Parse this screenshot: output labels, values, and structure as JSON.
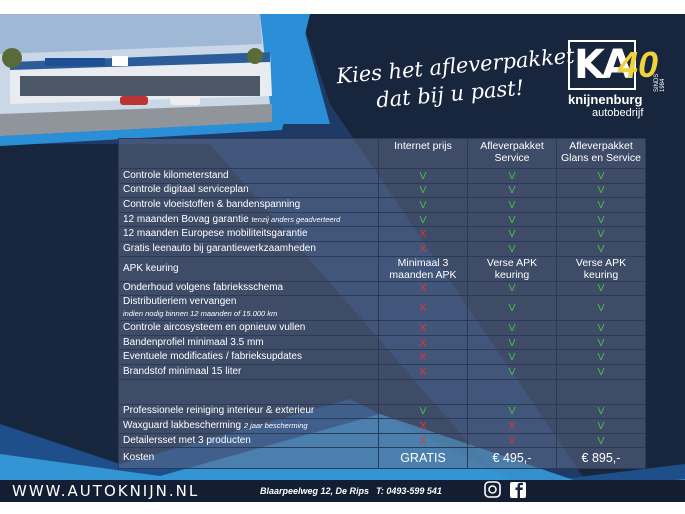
{
  "slogan": [
    "Kies het afleverpakket",
    "dat bij u past!"
  ],
  "logo": {
    "letters": "KA",
    "anniversary": "40",
    "name": "knijnenburg",
    "subtitle": "autobedrijf",
    "since": "SINDS 1984"
  },
  "table": {
    "symbol_colors": {
      "V": "#46c046",
      "X": "#e3342c"
    },
    "header": [
      "Internet prijs",
      "Afleverpakket Service",
      "Afleverpakket Glans en Service"
    ],
    "sections": [
      {
        "rows": [
          {
            "label": "Controle kilometerstand",
            "cells": [
              "V",
              "V",
              "V"
            ]
          },
          {
            "label": "Controle digitaal serviceplan",
            "cells": [
              "V",
              "V",
              "V"
            ]
          },
          {
            "label": "Controle vloeistoffen & bandenspanning",
            "cells": [
              "V",
              "V",
              "V"
            ]
          },
          {
            "label": "12 maanden Bovag garantie",
            "note": "tenzij anders geadverteerd",
            "cells": [
              "V",
              "V",
              "V"
            ]
          },
          {
            "label": "12 maanden Europese mobiliteitsgarantie",
            "cells": [
              "X",
              "V",
              "V"
            ]
          },
          {
            "label": "Gratis leenauto bij garantiewerkzaamheden",
            "cells": [
              "X",
              "V",
              "V"
            ]
          },
          {
            "label": "APK keuring",
            "cells": [
              "Minimaal 3 maanden APK",
              "Verse APK keuring",
              "Verse APK keuring"
            ]
          },
          {
            "label": "Onderhoud volgens fabrieksschema",
            "cells": [
              "X",
              "V",
              "V"
            ]
          },
          {
            "label": "Distributieriem vervangen",
            "note": "indien nodig binnen 12 maanden of 15.000 km",
            "cells": [
              "X",
              "V",
              "V"
            ]
          },
          {
            "label": "Controle aircosysteem en opnieuw vullen",
            "cells": [
              "X",
              "V",
              "V"
            ]
          },
          {
            "label": "Bandenprofiel minimaal 3.5 mm",
            "cells": [
              "X",
              "V",
              "V"
            ]
          },
          {
            "label": "Eventuele modificaties / fabrieksupdates",
            "cells": [
              "X",
              "V",
              "V"
            ]
          },
          {
            "label": "Brandstof minimaal 15 liter",
            "cells": [
              "X",
              "V",
              "V"
            ]
          }
        ]
      },
      {
        "rows": [
          {
            "label": "Professionele reiniging interieur & exterieur",
            "cells": [
              "V",
              "V",
              "V"
            ]
          },
          {
            "label": "Waxguard lakbescherming",
            "note": "2 jaar bescherming",
            "cells": [
              "X",
              "X",
              "V"
            ]
          },
          {
            "label": "Detailersset met 3 producten",
            "cells": [
              "X",
              "X",
              "V"
            ]
          }
        ]
      }
    ],
    "total": {
      "label": "Kosten",
      "cells": [
        "GRATIS",
        "€ 495,-",
        "€ 895,-"
      ]
    }
  },
  "footer": {
    "website": "WWW.AUTOKNIJN.NL",
    "address": "Blaarpeelweg 12, De Rips",
    "phone": "T: 0493-599 541"
  }
}
